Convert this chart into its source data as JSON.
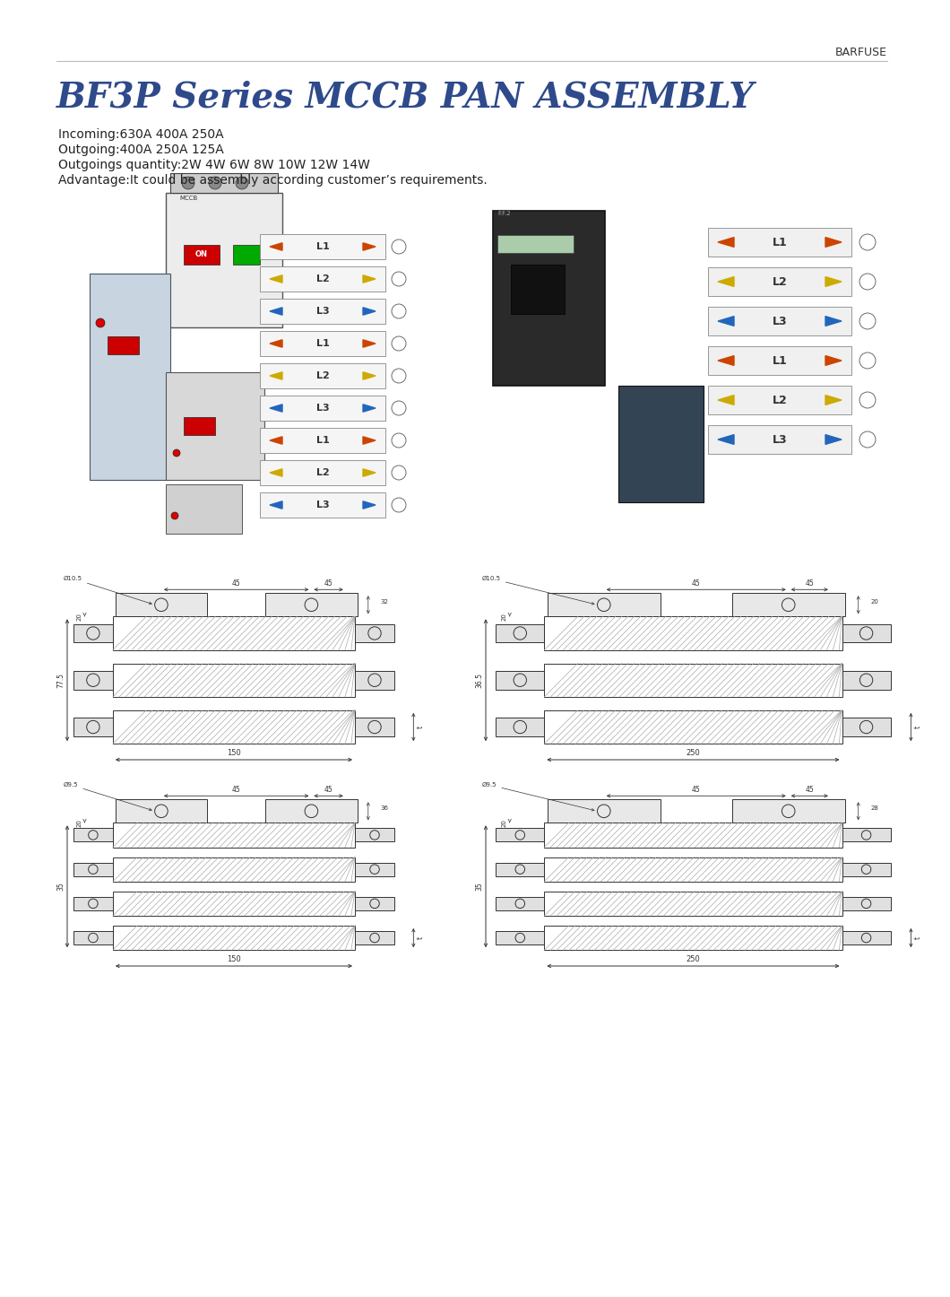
{
  "title": "BF3P Series MCCB PAN ASSEMBLY",
  "brand": "BARFUSE",
  "spec_lines": [
    "Incoming:630A 400A 250A",
    "Outgoing:400A 250A 125A",
    "Outgoings quantity:2W 4W 6W 8W 10W 12W 14W",
    "Advantage:It could be assembly according customer’s requirements."
  ],
  "title_color": "#2e4a8b",
  "title_fontsize": 28,
  "spec_fontsize": 10,
  "brand_fontsize": 9,
  "background_color": "#ffffff"
}
